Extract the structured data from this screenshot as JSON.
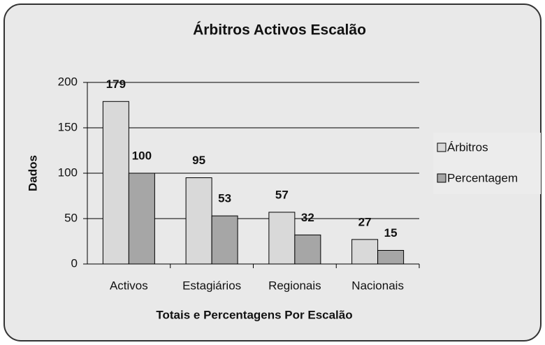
{
  "chart_data": {
    "type": "bar",
    "title": "Árbitros Activos Escalão",
    "y_label": "Dados",
    "x_label": "Totais e Percentagens Por Escalão",
    "categories": [
      "Activos",
      "Estagiários",
      "Regionais",
      "Nacionais"
    ],
    "series": [
      {
        "name": "Árbitros",
        "color": "#d9d9d9",
        "values": [
          179,
          95,
          57,
          27
        ]
      },
      {
        "name": "Percentagem",
        "color": "#a6a6a6",
        "values": [
          100,
          53,
          32,
          15
        ]
      }
    ],
    "ylim": [
      0,
      200
    ],
    "yticks": [
      0,
      50,
      100,
      150,
      200
    ],
    "grid": true,
    "legend": "right"
  }
}
